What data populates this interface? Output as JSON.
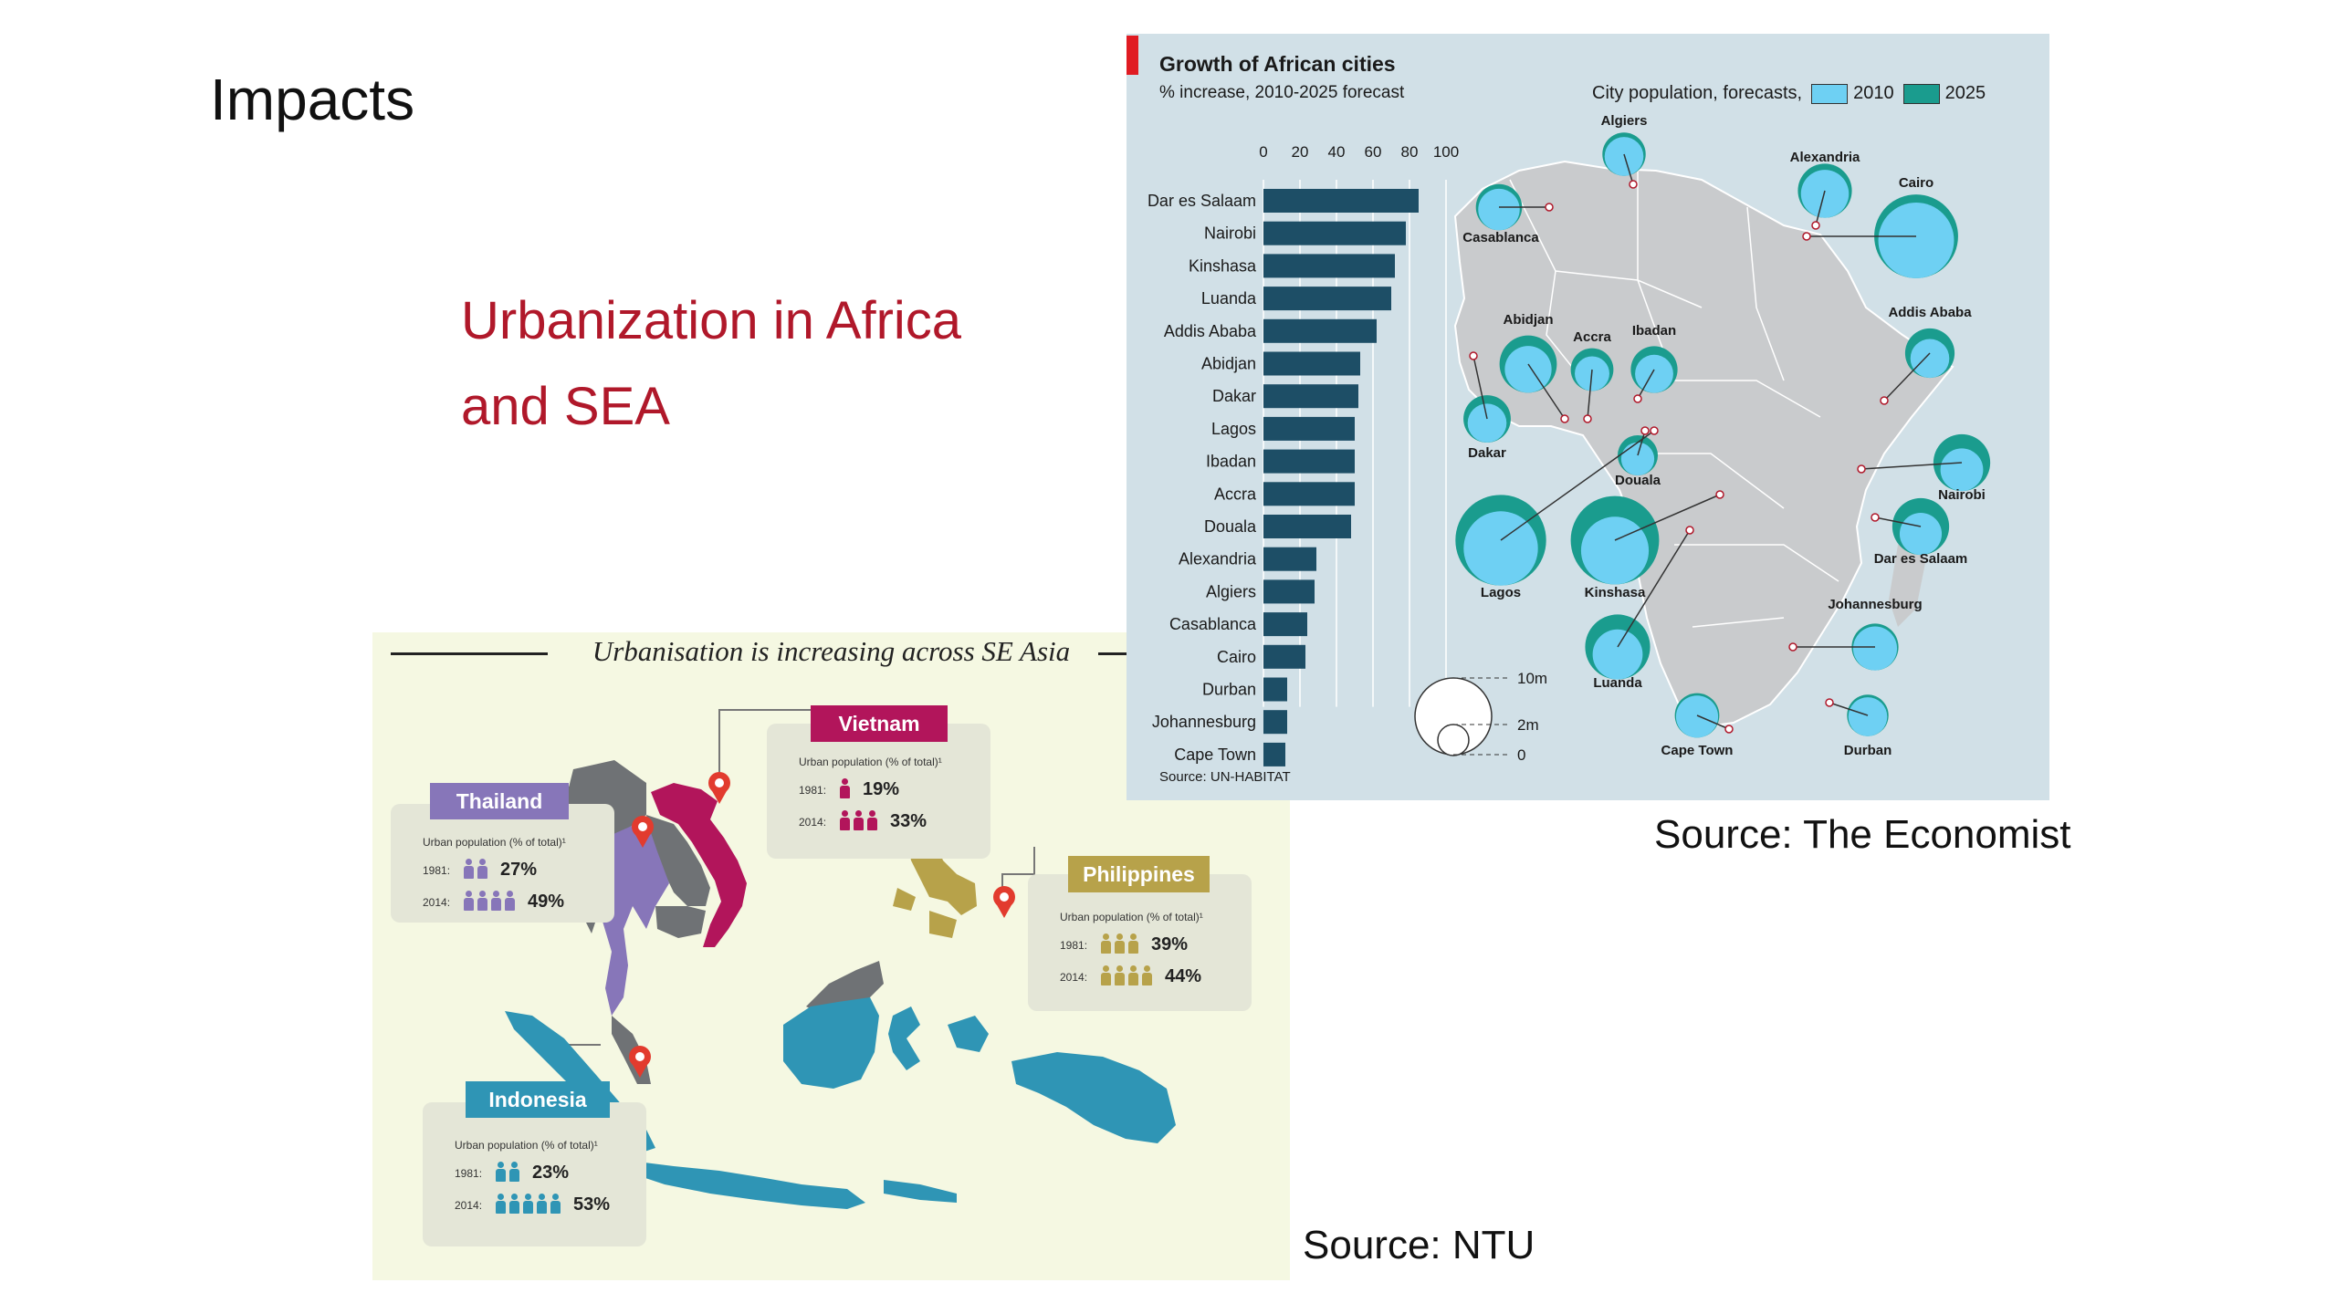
{
  "slide": {
    "title": "Impacts",
    "subtitle_line1": "Urbanization in Africa",
    "subtitle_line2": "and SEA",
    "source_economist": "Source: The Economist",
    "source_ntu": "Source: NTU"
  },
  "colors": {
    "subtitle": "#b0182a",
    "bar": "#1d4e66",
    "pop2010": "#6ed0f3",
    "pop2025": "#1a9c8e",
    "land": "#c9cbcd",
    "thailand": "#8776b9",
    "vietnam": "#b2155b",
    "philippines": "#b7a24a",
    "indonesia": "#2f95b5"
  },
  "sea": {
    "header": "Urbanisation is increasing across SE Asia",
    "caption": "Urban population (% of total)¹",
    "countries": [
      {
        "name": "Thailand",
        "y1981_label": "1981:",
        "y1981": "27%",
        "y1981_value": 27,
        "y2014_label": "2014:",
        "y2014": "49%",
        "y2014_value": 49,
        "icons1981": 2,
        "icons2014": 4,
        "color": "#8776b9"
      },
      {
        "name": "Vietnam",
        "y1981_label": "1981:",
        "y1981": "19%",
        "y1981_value": 19,
        "y2014_label": "2014:",
        "y2014": "33%",
        "y2014_value": 33,
        "icons1981": 1,
        "icons2014": 3,
        "color": "#b2155b"
      },
      {
        "name": "Philippines",
        "y1981_label": "1981:",
        "y1981": "39%",
        "y1981_value": 39,
        "y2014_label": "2014:",
        "y2014": "44%",
        "y2014_value": 44,
        "icons1981": 3,
        "icons2014": 4,
        "color": "#b7a24a"
      },
      {
        "name": "Indonesia",
        "y1981_label": "1981:",
        "y1981": "23%",
        "y1981_value": 23,
        "y2014_label": "2014:",
        "y2014": "53%",
        "y2014_value": 53,
        "icons1981": 2,
        "icons2014": 5,
        "color": "#2f95b5"
      }
    ]
  },
  "chart_data": {
    "type": "bar",
    "orientation": "horizontal",
    "title": "Growth of African cities",
    "subtitle": "% increase, 2010-2025 forecast",
    "categories": [
      "Dar es Salaam",
      "Nairobi",
      "Kinshasa",
      "Luanda",
      "Addis Ababa",
      "Abidjan",
      "Dakar",
      "Lagos",
      "Ibadan",
      "Accra",
      "Douala",
      "Alexandria",
      "Algiers",
      "Casablanca",
      "Cairo",
      "Durban",
      "Johannesburg",
      "Cape Town"
    ],
    "values": [
      85,
      78,
      72,
      70,
      62,
      53,
      52,
      50,
      50,
      50,
      48,
      29,
      28,
      24,
      23,
      13,
      13,
      12
    ],
    "xticks": [
      0,
      20,
      40,
      60,
      80,
      100
    ],
    "xlim": [
      0,
      100
    ],
    "grid": true,
    "legend": {
      "label": "City population, forecasts,",
      "entries": [
        "2010",
        "2025"
      ],
      "position": "top-right"
    },
    "size_legend": {
      "labels": [
        "10m",
        "2m",
        "0"
      ]
    },
    "cities_population_m": [
      {
        "city": "Algiers",
        "p2010": 2.9,
        "p2025": 3.6
      },
      {
        "city": "Alexandria",
        "p2010": 4.4,
        "p2025": 5.6
      },
      {
        "city": "Cairo",
        "p2010": 11.0,
        "p2025": 13.5
      },
      {
        "city": "Casablanca",
        "p2010": 3.3,
        "p2025": 4.1
      },
      {
        "city": "Addis Ababa",
        "p2010": 2.9,
        "p2025": 4.7
      },
      {
        "city": "Abidjan",
        "p2010": 4.2,
        "p2025": 6.3
      },
      {
        "city": "Accra",
        "p2010": 2.3,
        "p2025": 3.5
      },
      {
        "city": "Ibadan",
        "p2010": 2.8,
        "p2025": 4.2
      },
      {
        "city": "Dakar",
        "p2010": 2.9,
        "p2025": 4.3
      },
      {
        "city": "Douala",
        "p2010": 2.1,
        "p2025": 3.1
      },
      {
        "city": "Nairobi",
        "p2010": 3.5,
        "p2025": 6.2
      },
      {
        "city": "Dar es Salaam",
        "p2010": 3.4,
        "p2025": 6.2
      },
      {
        "city": "Lagos",
        "p2010": 10.6,
        "p2025": 15.8
      },
      {
        "city": "Kinshasa",
        "p2010": 8.8,
        "p2025": 15.0
      },
      {
        "city": "Luanda",
        "p2010": 4.8,
        "p2025": 8.1
      },
      {
        "city": "Johannesburg",
        "p2010": 3.7,
        "p2025": 4.2
      },
      {
        "city": "Cape Town",
        "p2010": 3.4,
        "p2025": 3.8
      },
      {
        "city": "Durban",
        "p2010": 2.9,
        "p2025": 3.3
      }
    ],
    "source": "Source: UN-HABITAT"
  }
}
